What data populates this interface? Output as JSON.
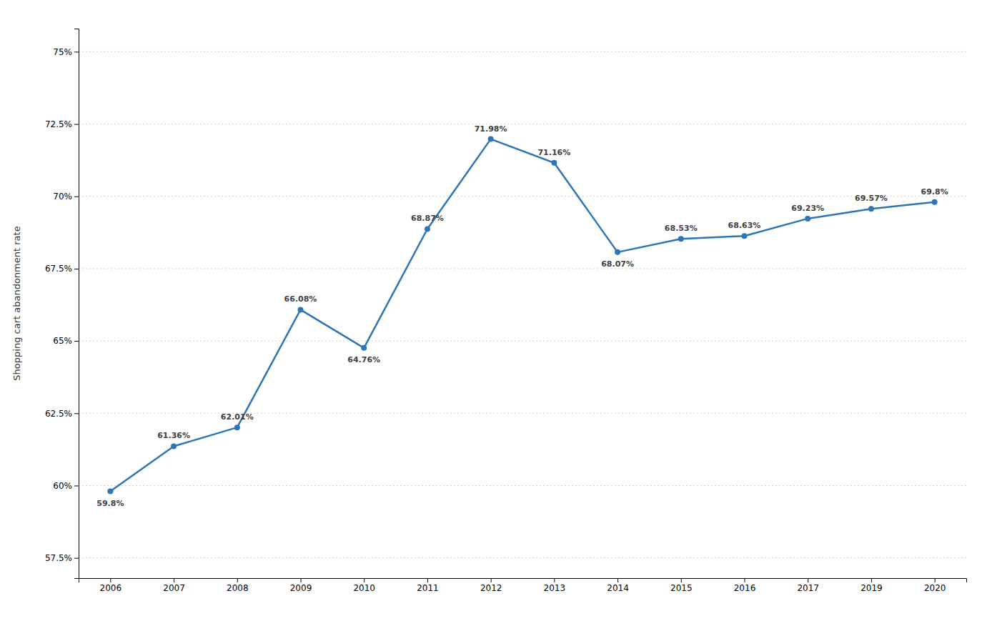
{
  "chart_data": {
    "type": "line",
    "ylabel": "Shopping cart abandonment rate",
    "categories": [
      "2006",
      "2007",
      "2008",
      "2009",
      "2010",
      "2011",
      "2012",
      "2013",
      "2014",
      "2015",
      "2016",
      "2017",
      "2019",
      "2020"
    ],
    "values": [
      59.8,
      61.36,
      62.01,
      66.08,
      64.76,
      68.87,
      71.98,
      71.16,
      68.07,
      68.53,
      68.63,
      69.23,
      69.57,
      69.8
    ],
    "value_labels": [
      "59.8%",
      "61.36%",
      "62.01%",
      "66.08%",
      "64.76%",
      "68.87%",
      "71.98%",
      "71.16%",
      "68.07%",
      "68.53%",
      "68.63%",
      "69.23%",
      "69.57%",
      "69.8%"
    ],
    "color": "#2e75b6",
    "marker": "circle",
    "data_labels": true,
    "ylim": [
      56.8,
      75.8
    ],
    "yticks": [
      {
        "value": 57.5,
        "label": "57.5%"
      },
      {
        "value": 60.0,
        "label": "60%"
      },
      {
        "value": 62.5,
        "label": "62.5%"
      },
      {
        "value": 65.0,
        "label": "65%"
      },
      {
        "value": 67.5,
        "label": "67.5%"
      },
      {
        "value": 70.0,
        "label": "70%"
      },
      {
        "value": 72.5,
        "label": "72.5%"
      },
      {
        "value": 75.0,
        "label": "75%"
      }
    ],
    "grid": true
  }
}
